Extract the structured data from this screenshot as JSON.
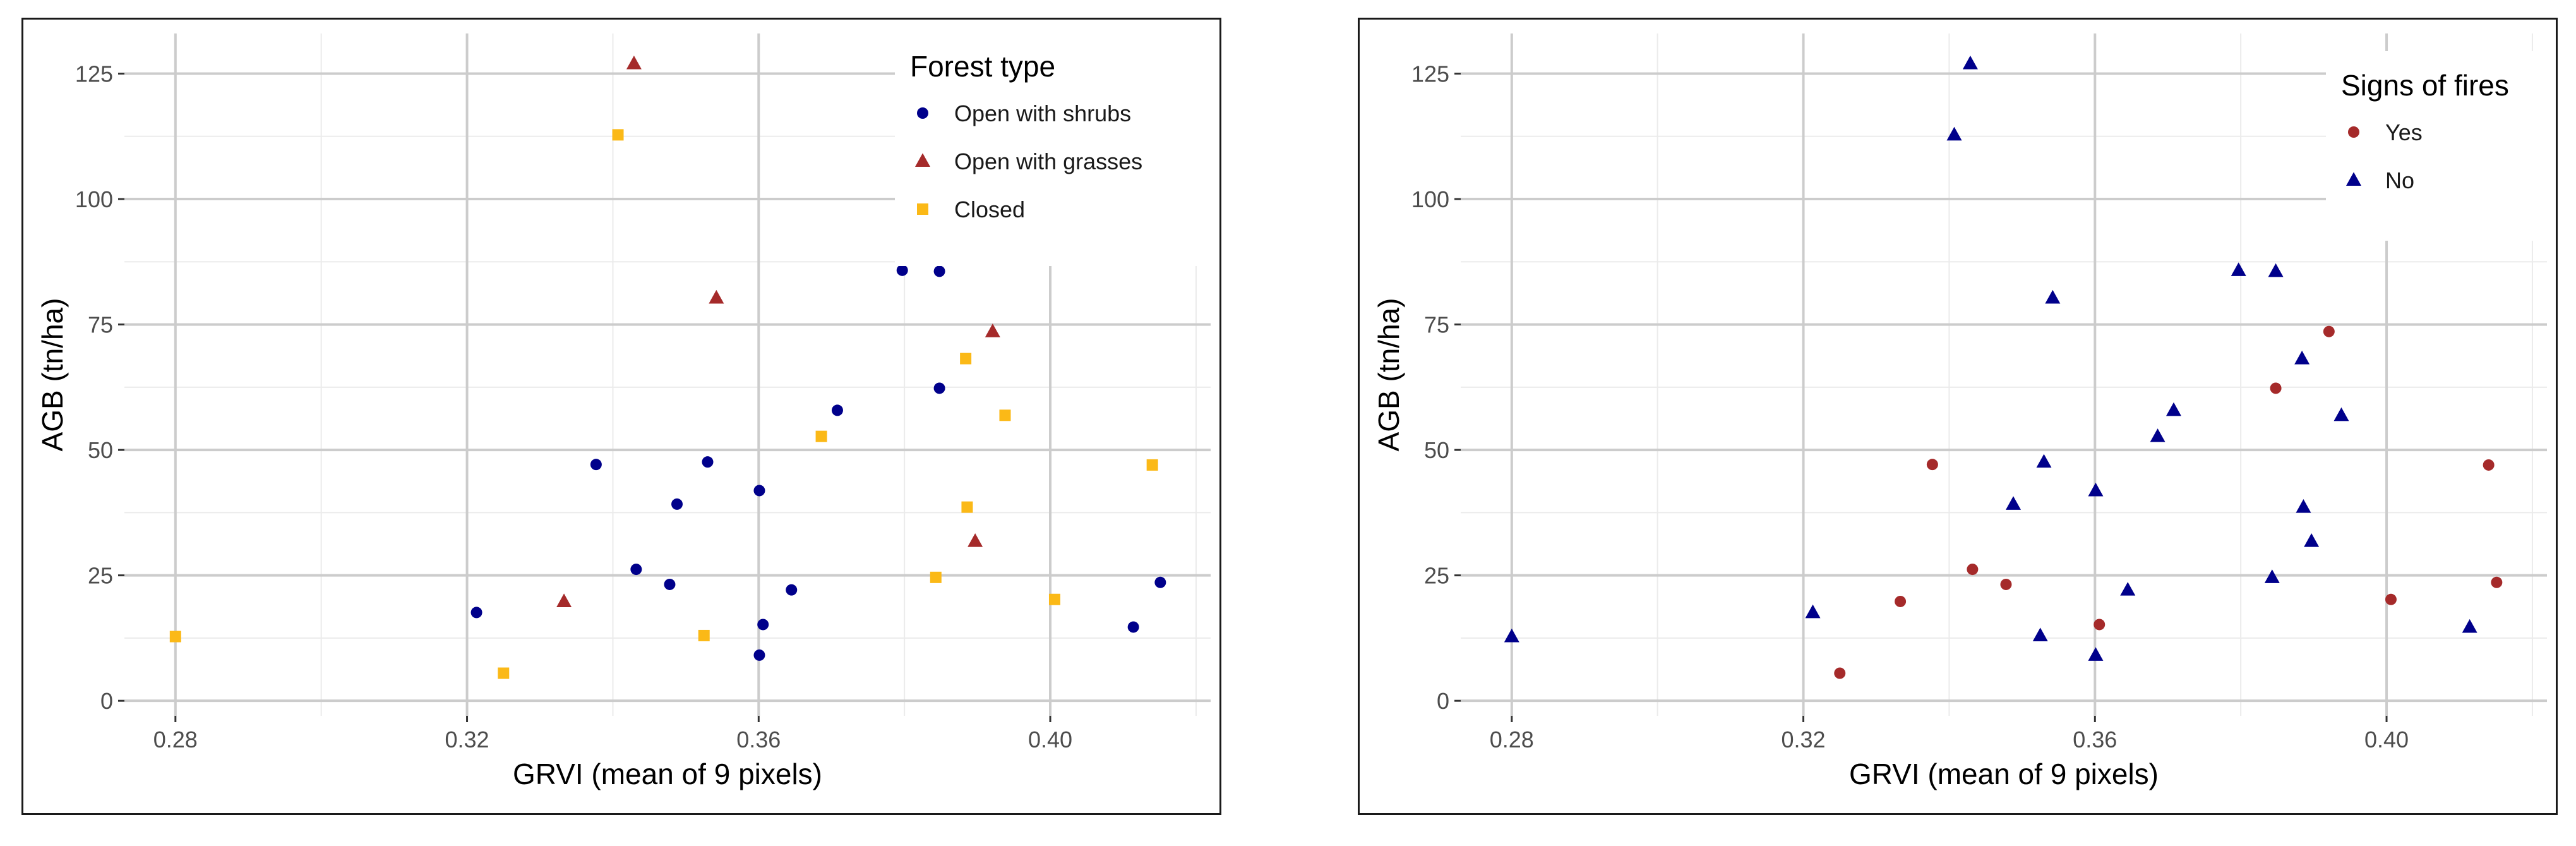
{
  "colors": {
    "navy": "#00008b",
    "firebrick": "#a52a2a",
    "gold": "#fbb917",
    "grid_major": "#cccccc",
    "grid_minor": "#ebebeb",
    "panel_border": "#1a1a1a"
  },
  "chart_data": [
    {
      "type": "scatter",
      "xlabel": "GRVI (mean of 9 pixels)",
      "ylabel": "AGB (tn/ha)",
      "xlim": [
        0.273,
        0.422
      ],
      "ylim": [
        -3,
        133
      ],
      "x_ticks": [
        0.28,
        0.32,
        0.36,
        0.4
      ],
      "x_tick_labels": [
        "0.28",
        "0.32",
        "0.36",
        "0.40"
      ],
      "y_ticks": [
        0,
        25,
        50,
        75,
        100,
        125
      ],
      "y_tick_labels": [
        "0",
        "25",
        "50",
        "75",
        "100",
        "125"
      ],
      "grid": true,
      "legend": {
        "title": "Forest type",
        "placement": "top-right",
        "entries": [
          {
            "label": "Open with shrubs",
            "shape": "circle",
            "color": "#00008b"
          },
          {
            "label": "Open with grasses",
            "shape": "triangle",
            "color": "#a52a2a"
          },
          {
            "label": "Closed",
            "shape": "square",
            "color": "#fbb917"
          }
        ]
      },
      "series": [
        {
          "name": "Open with shrubs",
          "shape": "circle",
          "color": "#00008b",
          "points": [
            {
              "x": 0.3213,
              "y": 17.6
            },
            {
              "x": 0.3377,
              "y": 47.1
            },
            {
              "x": 0.3432,
              "y": 26.2
            },
            {
              "x": 0.3478,
              "y": 23.2
            },
            {
              "x": 0.3488,
              "y": 39.2
            },
            {
              "x": 0.353,
              "y": 47.6
            },
            {
              "x": 0.3601,
              "y": 41.9
            },
            {
              "x": 0.3601,
              "y": 9.1
            },
            {
              "x": 0.3606,
              "y": 15.2
            },
            {
              "x": 0.3645,
              "y": 22.1
            },
            {
              "x": 0.3708,
              "y": 57.9
            },
            {
              "x": 0.3797,
              "y": 85.8
            },
            {
              "x": 0.3848,
              "y": 85.6
            },
            {
              "x": 0.3848,
              "y": 62.3
            },
            {
              "x": 0.4114,
              "y": 14.7
            },
            {
              "x": 0.4151,
              "y": 23.6
            }
          ]
        },
        {
          "name": "Open with grasses",
          "shape": "triangle",
          "color": "#a52a2a",
          "points": [
            {
              "x": 0.3333,
              "y": 19.8
            },
            {
              "x": 0.3429,
              "y": 127.0
            },
            {
              "x": 0.3542,
              "y": 80.3
            },
            {
              "x": 0.3897,
              "y": 31.8
            },
            {
              "x": 0.3921,
              "y": 73.6
            }
          ]
        },
        {
          "name": "Closed",
          "shape": "square",
          "color": "#fbb917",
          "points": [
            {
              "x": 0.28,
              "y": 12.8
            },
            {
              "x": 0.325,
              "y": 5.5
            },
            {
              "x": 0.3407,
              "y": 112.8
            },
            {
              "x": 0.3525,
              "y": 13.0
            },
            {
              "x": 0.3686,
              "y": 52.7
            },
            {
              "x": 0.3843,
              "y": 24.6
            },
            {
              "x": 0.3884,
              "y": 68.2
            },
            {
              "x": 0.3886,
              "y": 38.6
            },
            {
              "x": 0.3938,
              "y": 56.9
            },
            {
              "x": 0.4006,
              "y": 20.2
            },
            {
              "x": 0.414,
              "y": 47.0
            }
          ]
        }
      ]
    },
    {
      "type": "scatter",
      "xlabel": "GRVI (mean of 9 pixels)",
      "ylabel": "AGB (tn/ha)",
      "xlim": [
        0.273,
        0.422
      ],
      "ylim": [
        -3,
        133
      ],
      "x_ticks": [
        0.28,
        0.32,
        0.36,
        0.4
      ],
      "x_tick_labels": [
        "0.28",
        "0.32",
        "0.36",
        "0.40"
      ],
      "y_ticks": [
        0,
        25,
        50,
        75,
        100,
        125
      ],
      "y_tick_labels": [
        "0",
        "25",
        "50",
        "75",
        "100",
        "125"
      ],
      "grid": true,
      "legend": {
        "title": "Signs of fires",
        "placement": "top-right",
        "entries": [
          {
            "label": "Yes",
            "shape": "circle",
            "color": "#a52a2a"
          },
          {
            "label": "No",
            "shape": "triangle",
            "color": "#00008b"
          }
        ]
      },
      "series": [
        {
          "name": "Yes",
          "shape": "circle",
          "color": "#a52a2a",
          "points": [
            {
              "x": 0.325,
              "y": 5.5
            },
            {
              "x": 0.3333,
              "y": 19.8
            },
            {
              "x": 0.3377,
              "y": 47.1
            },
            {
              "x": 0.3432,
              "y": 26.2
            },
            {
              "x": 0.3478,
              "y": 23.2
            },
            {
              "x": 0.3606,
              "y": 15.2
            },
            {
              "x": 0.3848,
              "y": 62.3
            },
            {
              "x": 0.3921,
              "y": 73.6
            },
            {
              "x": 0.4006,
              "y": 20.2
            },
            {
              "x": 0.414,
              "y": 47.0
            },
            {
              "x": 0.4151,
              "y": 23.6
            }
          ]
        },
        {
          "name": "No",
          "shape": "triangle",
          "color": "#00008b",
          "points": [
            {
              "x": 0.28,
              "y": 12.8
            },
            {
              "x": 0.3213,
              "y": 17.6
            },
            {
              "x": 0.3407,
              "y": 112.8
            },
            {
              "x": 0.3429,
              "y": 127.0
            },
            {
              "x": 0.3488,
              "y": 39.2
            },
            {
              "x": 0.3525,
              "y": 13.0
            },
            {
              "x": 0.353,
              "y": 47.6
            },
            {
              "x": 0.3542,
              "y": 80.3
            },
            {
              "x": 0.3601,
              "y": 41.9
            },
            {
              "x": 0.3601,
              "y": 9.1
            },
            {
              "x": 0.3645,
              "y": 22.1
            },
            {
              "x": 0.3686,
              "y": 52.7
            },
            {
              "x": 0.3708,
              "y": 57.9
            },
            {
              "x": 0.3797,
              "y": 85.8
            },
            {
              "x": 0.3843,
              "y": 24.6
            },
            {
              "x": 0.3848,
              "y": 85.6
            },
            {
              "x": 0.3884,
              "y": 68.2
            },
            {
              "x": 0.3886,
              "y": 38.6
            },
            {
              "x": 0.3897,
              "y": 31.8
            },
            {
              "x": 0.3938,
              "y": 56.9
            },
            {
              "x": 0.4114,
              "y": 14.7
            }
          ]
        }
      ]
    }
  ]
}
